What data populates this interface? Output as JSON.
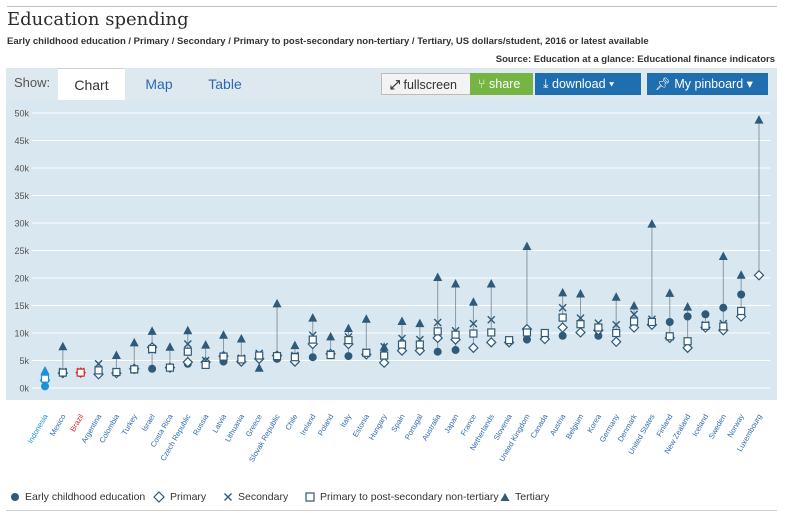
{
  "header": {
    "title": "Education spending",
    "subtitle": "Early childhood education / Primary / Secondary / Primary to post-secondary non-tertiary / Tertiary, US dollars/student, 2016 or latest available",
    "source": "Source: Education at a glance: Educational finance indicators"
  },
  "toolbar": {
    "show_label": "Show:",
    "tabs": [
      "Chart",
      "Map",
      "Table"
    ],
    "fullscreen_label": "fullscreen",
    "share_label": "share",
    "download_label": "download",
    "pinboard_label": "My pinboard"
  },
  "colors": {
    "marker": "#2f5a7a",
    "highlight_blue": "#1e8fd8",
    "highlight_red": "#d92b2b",
    "chart_bg": "#d8e7f0",
    "share_green": "#76b443",
    "button_blue": "#1f6eb0"
  },
  "chart_data": {
    "type": "scatter",
    "ylim": [
      0,
      50000
    ],
    "y_ticks": [
      "0k",
      "5k",
      "10k",
      "15k",
      "20k",
      "25k",
      "30k",
      "35k",
      "40k",
      "45k",
      "50k"
    ],
    "grid": true,
    "legend_position": "bottom",
    "highlighted": {
      "Indonesia": "blue",
      "Brazil": "red"
    },
    "categories": [
      "Indonesia",
      "Mexico",
      "Brazil",
      "Argentina",
      "Colombia",
      "Turkey",
      "Israel",
      "Costa Rica",
      "Czech Republic",
      "Russia",
      "Latvia",
      "Lithuania",
      "Greece",
      "Slovak Republic",
      "Chile",
      "Ireland",
      "Poland",
      "Italy",
      "Estonia",
      "Hungary",
      "Spain",
      "Portugal",
      "Australia",
      "Japan",
      "France",
      "Netherlands",
      "Slovenia",
      "United Kingdom",
      "Canada",
      "Austria",
      "Belgium",
      "Korea",
      "Germany",
      "Denmark",
      "United States",
      "Finland",
      "New Zealand",
      "Iceland",
      "Sweden",
      "Norway",
      "Luxembourg"
    ],
    "series": [
      {
        "name": "Early childhood education",
        "symbol": "circle",
        "values": [
          300,
          null,
          2700,
          2600,
          null,
          3300,
          3500,
          null,
          4400,
          4200,
          4800,
          5000,
          null,
          5300,
          5700,
          5600,
          null,
          5800,
          null,
          6200,
          null,
          null,
          6600,
          6900,
          null,
          null,
          null,
          8800,
          null,
          9500,
          null,
          9500,
          null,
          null,
          null,
          12000,
          13000,
          13400,
          14600,
          17000,
          null
        ]
      },
      {
        "name": "Primary",
        "symbol": "diamond",
        "values": [
          1400,
          2700,
          2800,
          2500,
          2700,
          3500,
          7400,
          3700,
          4700,
          4700,
          5800,
          4800,
          5300,
          5900,
          4800,
          8000,
          6200,
          8000,
          6100,
          4600,
          6800,
          6800,
          9100,
          8800,
          7300,
          8300,
          8300,
          10700,
          8900,
          11000,
          10100,
          10500,
          8400,
          11000,
          11500,
          9100,
          7300,
          11000,
          10500,
          13000,
          20500
        ]
      },
      {
        "name": "Secondary",
        "symbol": "x",
        "values": [
          1900,
          3000,
          3000,
          4400,
          3000,
          3300,
          6900,
          3700,
          8000,
          5000,
          5800,
          5400,
          6300,
          5600,
          5900,
          9600,
          6200,
          9300,
          6500,
          7500,
          9000,
          8800,
          11900,
          10400,
          11700,
          12400,
          null,
          9600,
          null,
          14600,
          12700,
          11800,
          11500,
          13400,
          12500,
          null,
          null,
          11500,
          11700,
          null,
          null
        ]
      },
      {
        "name": "Primary to post-secondary non-tertiary",
        "symbol": "square",
        "values": [
          1700,
          2800,
          2800,
          3200,
          2900,
          3400,
          7100,
          3700,
          6600,
          4200,
          5700,
          5200,
          5900,
          5800,
          5600,
          8800,
          6000,
          8700,
          6400,
          5900,
          7900,
          7900,
          10300,
          9700,
          9900,
          10100,
          8700,
          10100,
          10000,
          12800,
          11600,
          11000,
          10000,
          12100,
          12000,
          9400,
          8500,
          11300,
          11200,
          14000,
          null
        ]
      },
      {
        "name": "Tertiary",
        "symbol": "triangle",
        "values": [
          3100,
          7500,
          null,
          null,
          5900,
          8200,
          10300,
          7400,
          10400,
          7800,
          9600,
          8900,
          3600,
          15300,
          7700,
          12700,
          9300,
          10800,
          12500,
          7400,
          12100,
          11700,
          20100,
          18900,
          15600,
          18900,
          null,
          25700,
          null,
          17300,
          17100,
          null,
          16500,
          14900,
          29800,
          17200,
          14700,
          null,
          23900,
          20500,
          48700
        ]
      }
    ]
  }
}
